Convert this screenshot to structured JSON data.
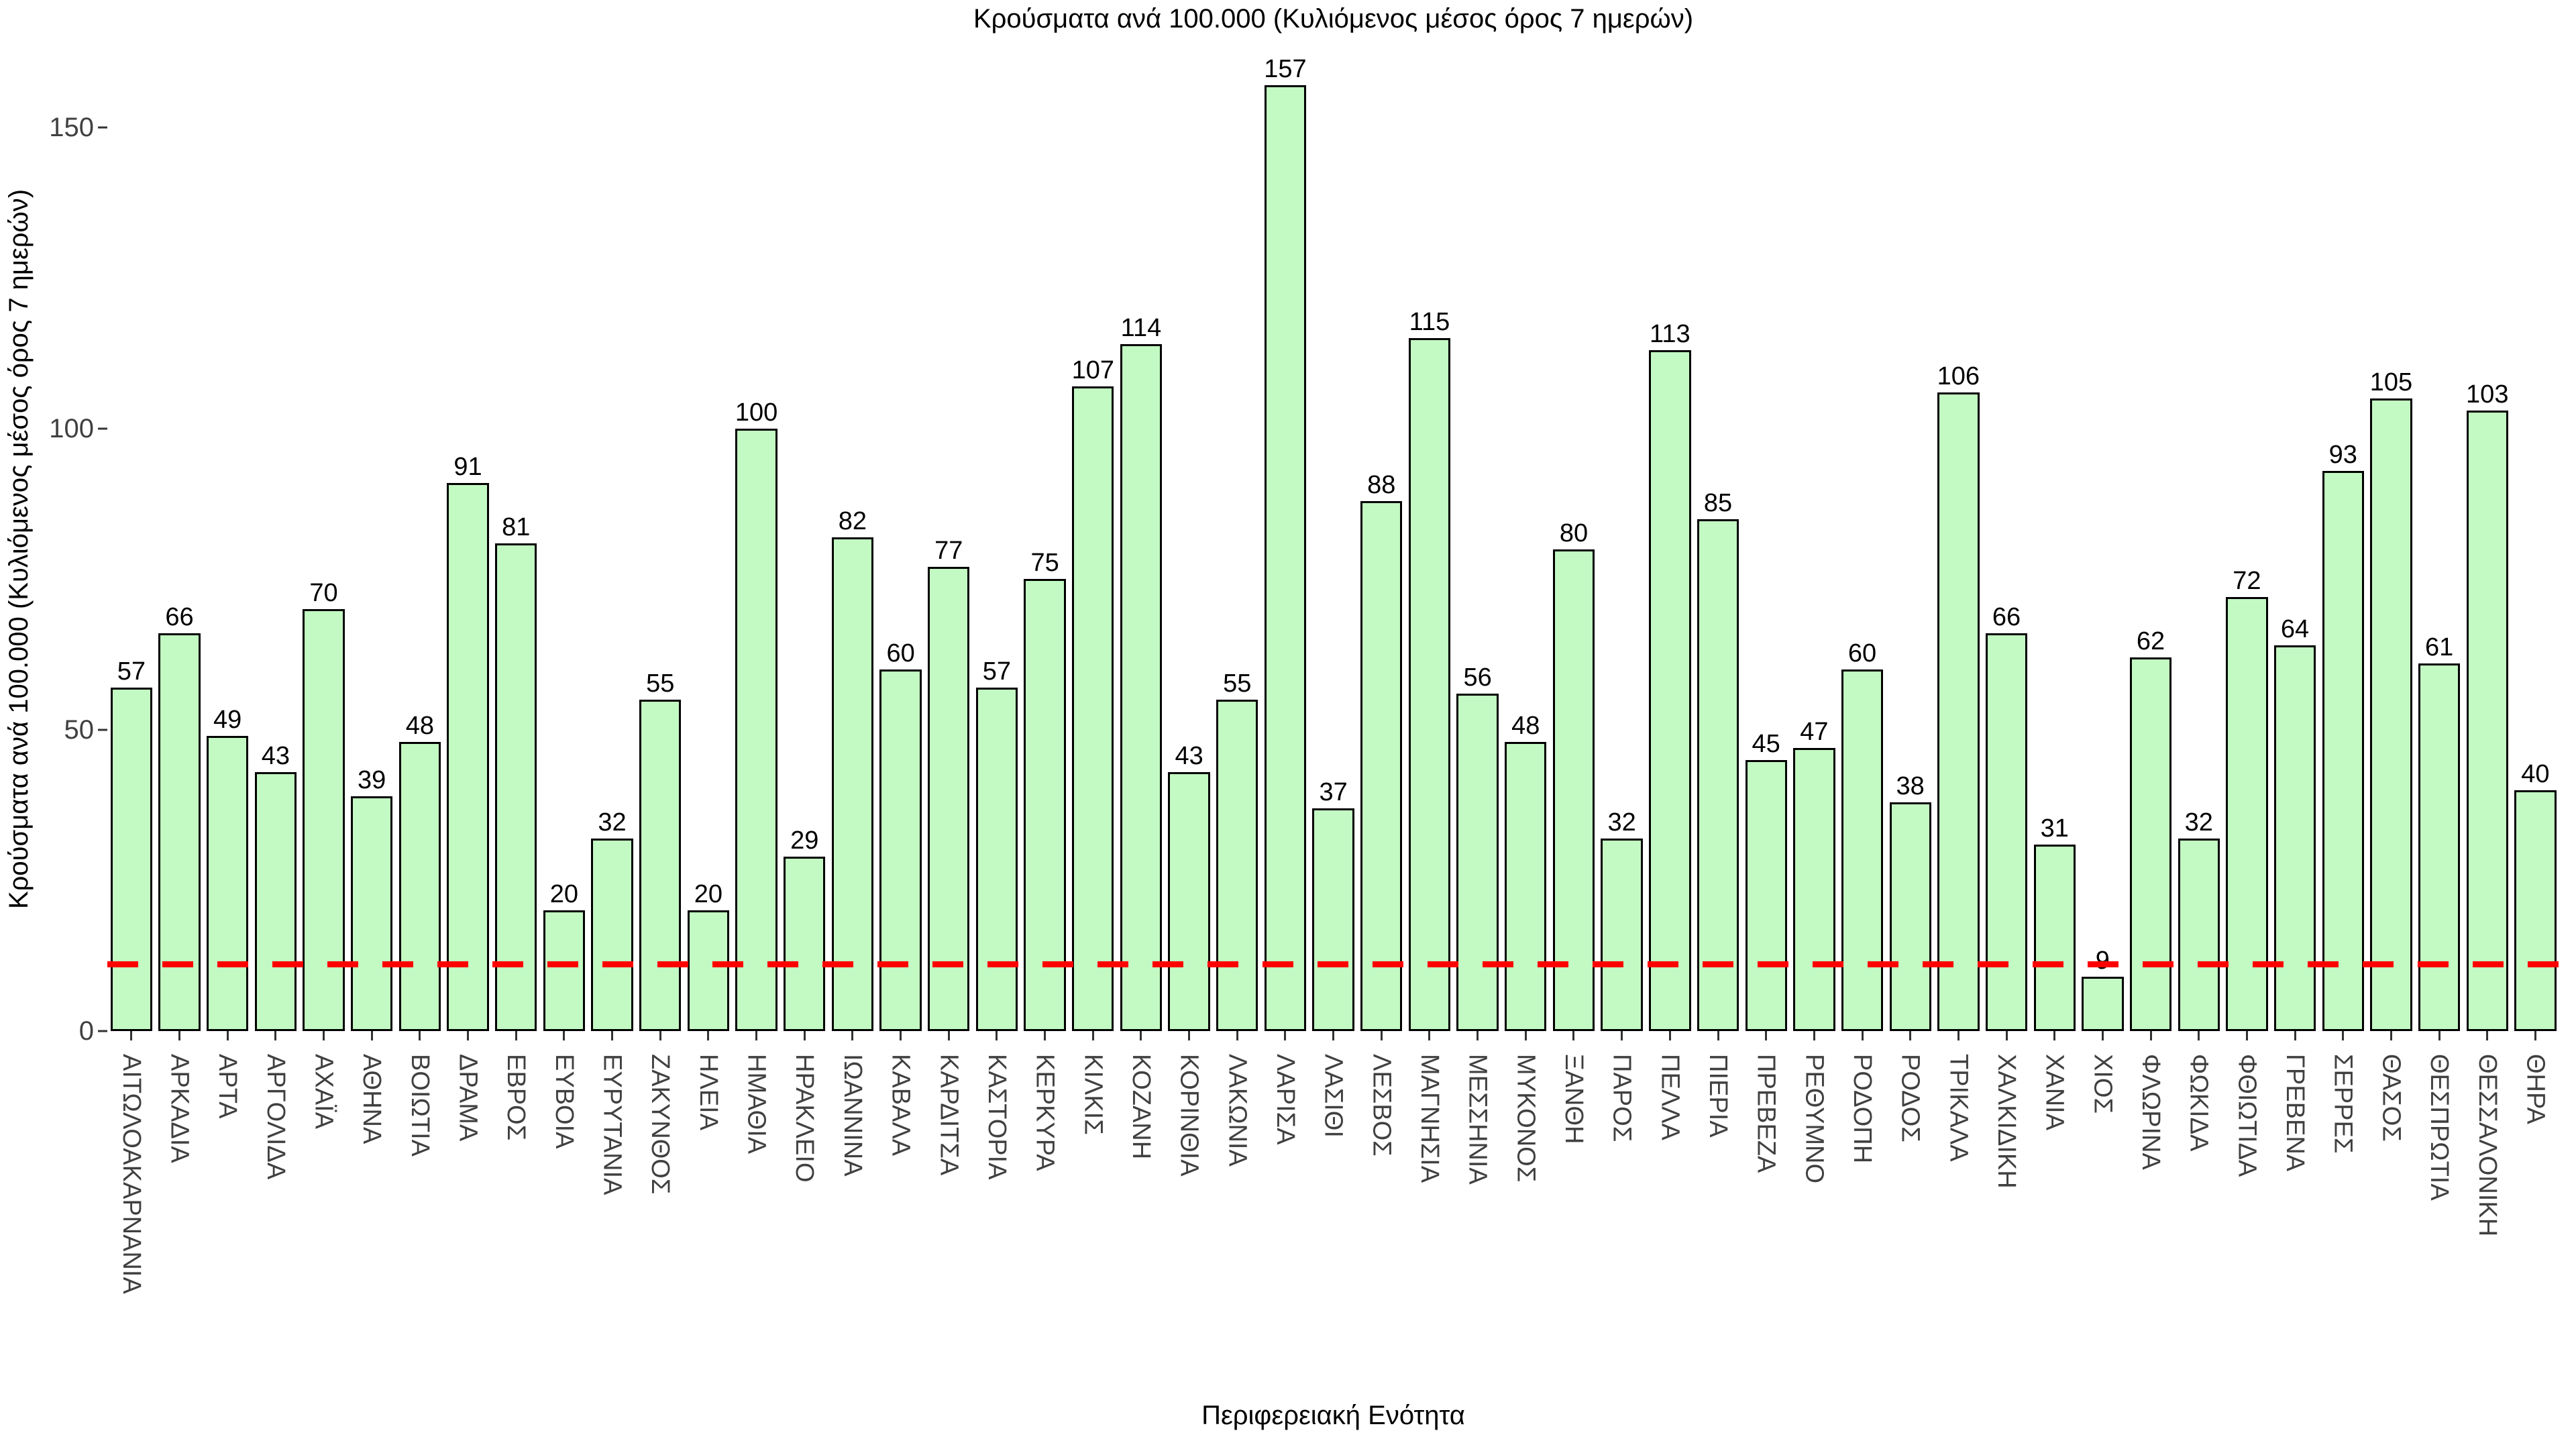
{
  "chart_data": {
    "type": "bar",
    "title": "Κρούσματα ανά 100.000 (Κυλιόμενος μέσος όρος 7 ημερών)",
    "xlabel": "Περιφερειακή Ενότητα",
    "ylabel": "Κρούσματα ανά 100.000 (Κυλιόμενος μέσος όρος 7 ημερών)",
    "categories": [
      "ΑΙΤΩΛΟΑΚΑΡΝΑΝΙΑ",
      "ΑΡΚΑΔΙΑ",
      "ΑΡΤΑ",
      "ΑΡΓΟΛΙΔΑ",
      "ΑΧΑΪΑ",
      "ΑΘΗΝΑ",
      "ΒΟΙΩΤΙΑ",
      "ΔΡΑΜΑ",
      "ΕΒΡΟΣ",
      "ΕΥΒΟΙΑ",
      "ΕΥΡΥΤΑΝΙΑ",
      "ΖΑΚΥΝΘΟΣ",
      "ΗΛΕΙΑ",
      "ΗΜΑΘΙΑ",
      "ΗΡΑΚΛΕΙΟ",
      "ΙΩΑΝΝΙΝΑ",
      "ΚΑΒΑΛΑ",
      "ΚΑΡΔΙΤΣΑ",
      "ΚΑΣΤΟΡΙΑ",
      "ΚΕΡΚΥΡΑ",
      "ΚΙΛΚΙΣ",
      "ΚΟΖΑΝΗ",
      "ΚΟΡΙΝΘΙΑ",
      "ΛΑΚΩΝΙΑ",
      "ΛΑΡΙΣΑ",
      "ΛΑΣΙΘΙ",
      "ΛΕΣΒΟΣ",
      "ΜΑΓΝΗΣΙΑ",
      "ΜΕΣΣΗΝΙΑ",
      "ΜΥΚΟΝΟΣ",
      "ΞΑΝΘΗ",
      "ΠΑΡΟΣ",
      "ΠΕΛΛΑ",
      "ΠΙΕΡΙΑ",
      "ΠΡΕΒΕΖΑ",
      "ΡΕΘΥΜΝΟ",
      "ΡΟΔΟΠΗ",
      "ΡΟΔΟΣ",
      "ΤΡΙΚΑΛΑ",
      "ΧΑΛΚΙΔΙΚΗ",
      "ΧΑΝΙΑ",
      "ΧΙΟΣ",
      "ΦΛΩΡΙΝΑ",
      "ΦΩΚΙΔΑ",
      "ΦΘΙΩΤΙΔΑ",
      "ΓΡΕΒΕΝΑ",
      "ΣΕΡΡΕΣ",
      "ΘΑΣΟΣ",
      "ΘΕΣΠΡΩΤΙΑ",
      "ΘΕΣΣΑΛΟΝΙΚΗ",
      "ΘΗΡΑ"
    ],
    "values": [
      57,
      66,
      49,
      43,
      70,
      39,
      48,
      91,
      81,
      20,
      32,
      55,
      20,
      100,
      29,
      82,
      60,
      77,
      57,
      75,
      107,
      114,
      43,
      55,
      157,
      37,
      88,
      115,
      56,
      48,
      80,
      32,
      113,
      85,
      45,
      47,
      60,
      38,
      106,
      66,
      31,
      9,
      62,
      32,
      72,
      64,
      93,
      105,
      61,
      103,
      40
    ],
    "yticks": [
      0,
      50,
      100,
      150
    ],
    "ylim": [
      0,
      160
    ],
    "grid": false,
    "legend": null,
    "reference_line": {
      "value": 11,
      "style": "dashed",
      "color": "#ff0000"
    },
    "colors": {
      "bar_fill": "#c3f9c3",
      "bar_border": "#000000",
      "reference_line": "#ff0000",
      "value_label": "#000000",
      "axis_label": "#404040"
    }
  }
}
